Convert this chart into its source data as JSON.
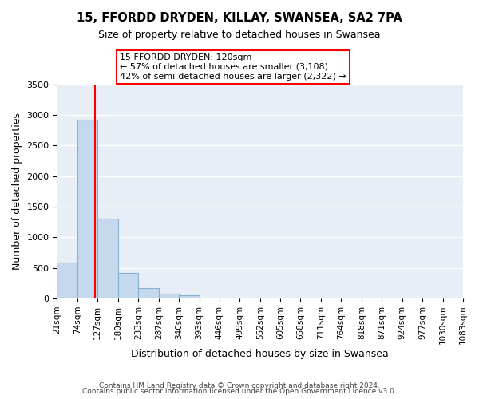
{
  "title": "15, FFORDD DRYDEN, KILLAY, SWANSEA, SA2 7PA",
  "subtitle": "Size of property relative to detached houses in Swansea",
  "xlabel": "Distribution of detached houses by size in Swansea",
  "ylabel": "Number of detached properties",
  "bar_edges": [
    21,
    74,
    127,
    180,
    233,
    287,
    340,
    393,
    446,
    499,
    552,
    605,
    658,
    711,
    764,
    818,
    871,
    924,
    977,
    1030,
    1083
  ],
  "bar_heights": [
    580,
    2920,
    1310,
    415,
    165,
    75,
    55,
    0,
    0,
    0,
    0,
    0,
    0,
    0,
    0,
    0,
    0,
    0,
    0,
    0
  ],
  "bar_color": "#c5d8ed",
  "bar_edgecolor": "#8ab0d0",
  "property_line_x": 120,
  "property_line_color": "red",
  "annotation_line1": "15 FFORDD DRYDEN: 120sqm",
  "annotation_line2": "← 57% of detached houses are smaller (3,108)",
  "annotation_line3": "42% of semi-detached houses are larger (2,322) →",
  "ylim": [
    0,
    3500
  ],
  "yticks": [
    0,
    500,
    1000,
    1500,
    2000,
    2500,
    3000,
    3500
  ],
  "bg_color": "#e8eef5",
  "grid_color": "white",
  "footer_line1": "Contains HM Land Registry data © Crown copyright and database right 2024.",
  "footer_line2": "Contains public sector information licensed under the Open Government Licence v3.0."
}
